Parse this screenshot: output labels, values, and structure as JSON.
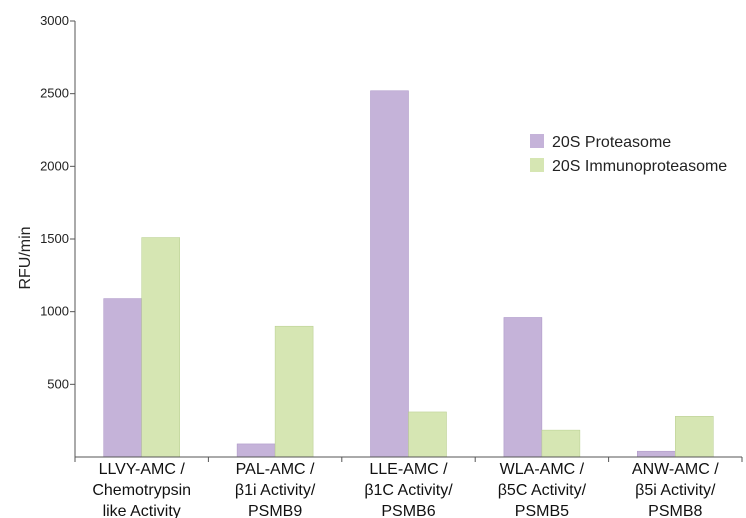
{
  "chart_data": {
    "type": "bar",
    "ylabel": "RFU/min",
    "xlabel": "",
    "ylim": [
      0,
      3000
    ],
    "yticks": [
      500,
      1000,
      1500,
      2000,
      2500,
      3000
    ],
    "categories": [
      [
        "LLVY-AMC /",
        "Chemotrypsin",
        "like Activity"
      ],
      [
        "PAL-AMC /",
        "β1i Activity/",
        "PSMB9"
      ],
      [
        "LLE-AMC /",
        "β1C Activity/",
        "PSMB6"
      ],
      [
        "WLA-AMC /",
        "β5C Activity/",
        "PSMB5"
      ],
      [
        "ANW-AMC /",
        "β5i Activity/",
        "PSMB8"
      ]
    ],
    "series": [
      {
        "name": "20S Proteasome",
        "color": "#c5b3d9",
        "values": [
          1090,
          90,
          2520,
          960,
          40
        ]
      },
      {
        "name": "20S Immunoproteasome",
        "color": "#d6e6b3",
        "values": [
          1510,
          900,
          310,
          185,
          280
        ]
      }
    ],
    "legend": "top-right",
    "grid": false
  }
}
